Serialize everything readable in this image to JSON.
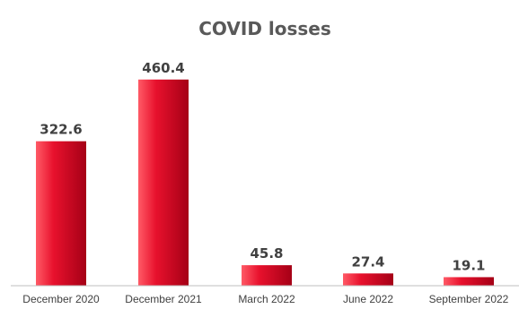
{
  "chart_data": {
    "type": "bar",
    "title": "COVID losses",
    "xlabel": "",
    "ylabel": "",
    "categories": [
      "December 2020",
      "December 2021",
      "March 2022",
      "June 2022",
      "September 2022"
    ],
    "values": [
      322.6,
      460.4,
      45.8,
      27.4,
      19.1
    ],
    "data_labels": [
      "322.6",
      "460.4",
      "45.8",
      "27.4",
      "19.1"
    ],
    "ylim": [
      0,
      500
    ],
    "grid": false,
    "legend": "none",
    "bar_color": "#e8112d",
    "bar_highlight": "#ff5a66",
    "bar_shadow": "#a50016"
  }
}
